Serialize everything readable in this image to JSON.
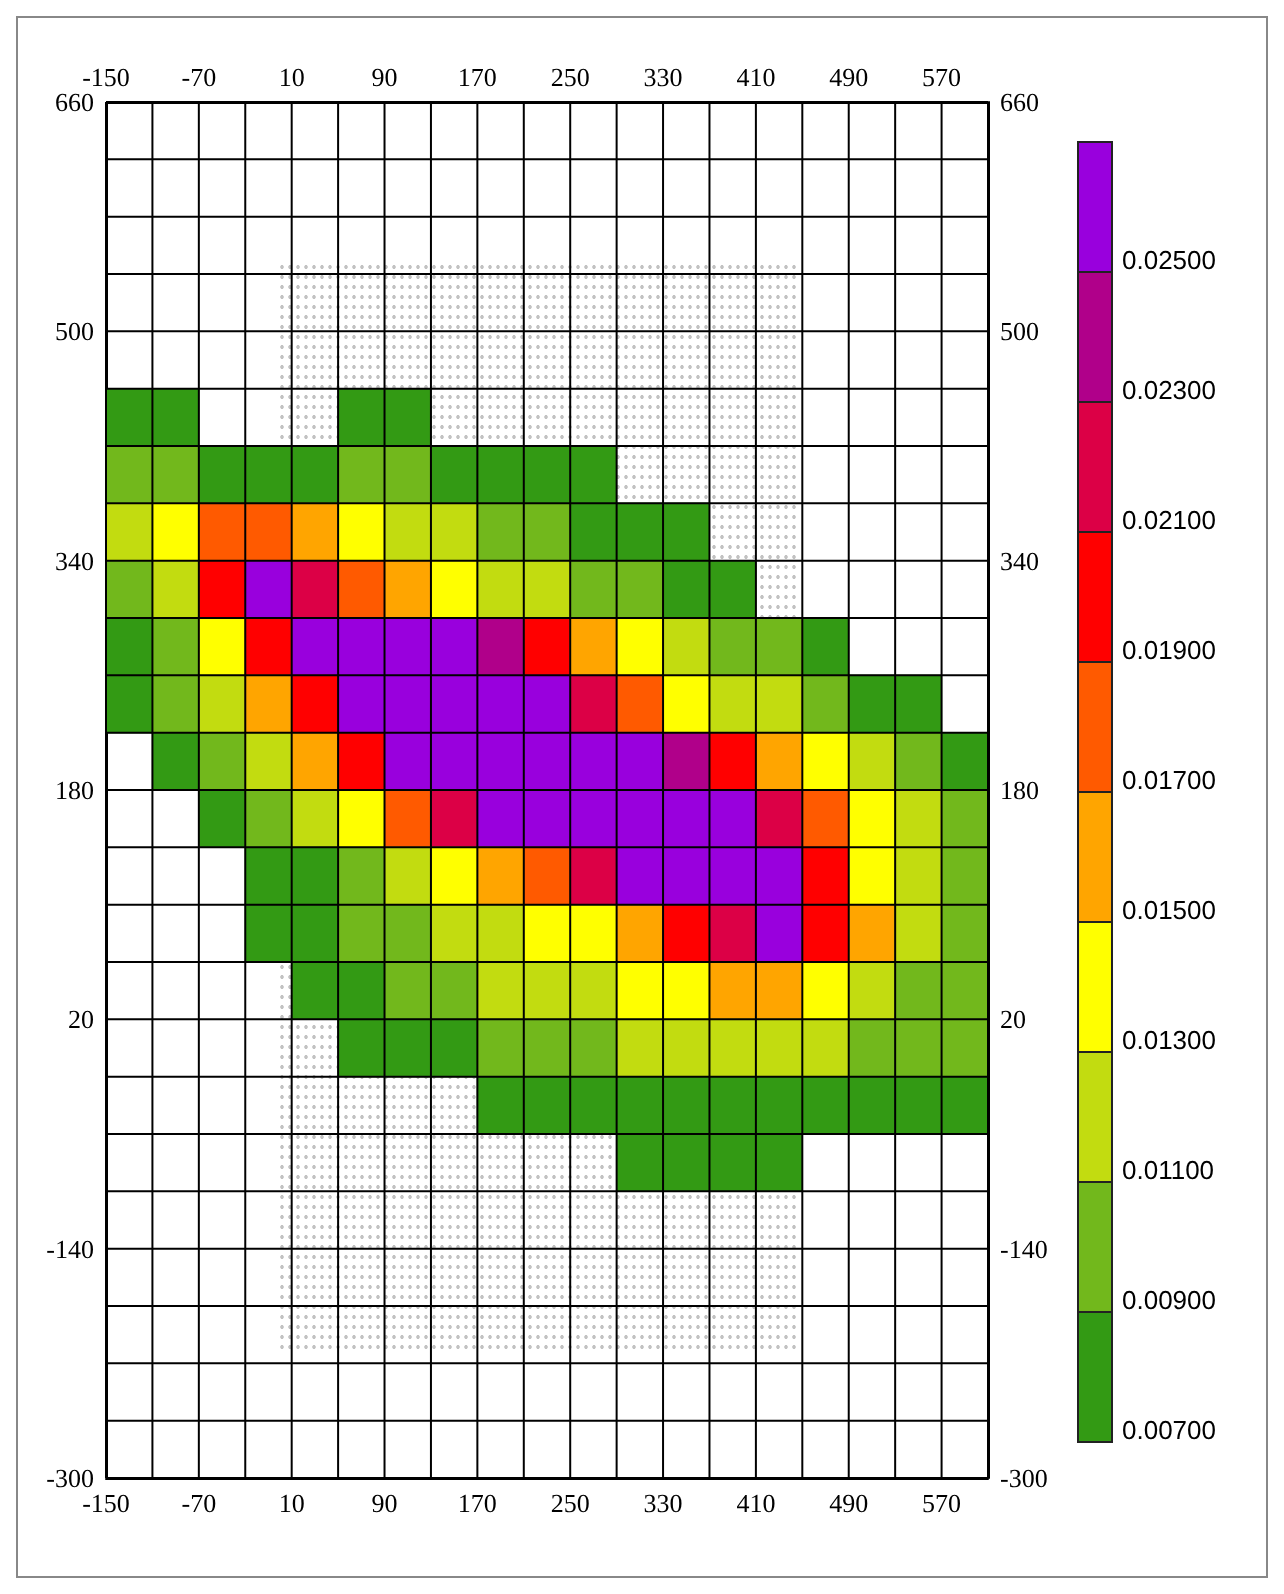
{
  "chart_data": {
    "type": "scatter",
    "marker": "square",
    "x": [
      -130,
      -90,
      70,
      110,
      -130,
      -90,
      -50,
      -10,
      30,
      70,
      110,
      150,
      190,
      230,
      270,
      -130,
      -90,
      -50,
      -10,
      30,
      70,
      110,
      150,
      190,
      230,
      270,
      310,
      350,
      -130,
      -90,
      -50,
      -10,
      30,
      70,
      110,
      150,
      190,
      230,
      270,
      310,
      350,
      390,
      -130,
      -90,
      -50,
      -10,
      30,
      70,
      110,
      150,
      190,
      230,
      270,
      310,
      350,
      390,
      430,
      470,
      -130,
      -90,
      -50,
      -10,
      30,
      70,
      110,
      150,
      190,
      230,
      270,
      310,
      350,
      390,
      430,
      470,
      510,
      550,
      -90,
      -50,
      -10,
      30,
      70,
      110,
      150,
      190,
      230,
      270,
      310,
      350,
      390,
      430,
      470,
      510,
      550,
      590,
      -50,
      -10,
      30,
      70,
      110,
      150,
      190,
      230,
      270,
      310,
      350,
      390,
      430,
      470,
      510,
      550,
      590,
      -10,
      30,
      70,
      110,
      150,
      190,
      230,
      270,
      310,
      350,
      390,
      430,
      470,
      510,
      550,
      590,
      -10,
      30,
      70,
      110,
      150,
      190,
      230,
      270,
      310,
      350,
      390,
      430,
      470,
      510,
      550,
      590,
      30,
      70,
      110,
      150,
      190,
      230,
      270,
      310,
      350,
      390,
      430,
      470,
      510,
      550,
      590,
      70,
      110,
      150,
      190,
      230,
      270,
      310,
      350,
      390,
      430,
      470,
      510,
      550,
      590,
      190,
      230,
      270,
      310,
      350,
      390,
      430,
      470,
      510,
      550,
      590,
      310,
      350,
      390,
      430
    ],
    "values": [
      440,
      440,
      440,
      440,
      400,
      400,
      400,
      400,
      400,
      400,
      400,
      400,
      400,
      400,
      400,
      360,
      360,
      360,
      360,
      360,
      360,
      360,
      360,
      360,
      360,
      360,
      360,
      360,
      320,
      320,
      320,
      320,
      320,
      320,
      320,
      320,
      320,
      320,
      320,
      320,
      320,
      320,
      280,
      280,
      280,
      280,
      280,
      280,
      280,
      280,
      280,
      280,
      280,
      280,
      280,
      280,
      280,
      280,
      240,
      240,
      240,
      240,
      240,
      240,
      240,
      240,
      240,
      240,
      240,
      240,
      240,
      240,
      240,
      240,
      240,
      240,
      200,
      200,
      200,
      200,
      200,
      200,
      200,
      200,
      200,
      200,
      200,
      200,
      200,
      200,
      200,
      200,
      200,
      200,
      160,
      160,
      160,
      160,
      160,
      160,
      160,
      160,
      160,
      160,
      160,
      160,
      160,
      160,
      160,
      160,
      160,
      120,
      120,
      120,
      120,
      120,
      120,
      120,
      120,
      120,
      120,
      120,
      120,
      120,
      120,
      120,
      120,
      80,
      80,
      80,
      80,
      80,
      80,
      80,
      80,
      80,
      80,
      80,
      80,
      80,
      80,
      80,
      80,
      40,
      40,
      40,
      40,
      40,
      40,
      40,
      40,
      40,
      40,
      40,
      40,
      40,
      40,
      40,
      0,
      0,
      0,
      0,
      0,
      0,
      0,
      0,
      0,
      0,
      0,
      0,
      0,
      0,
      -40,
      -40,
      -40,
      -40,
      -40,
      -40,
      -40,
      -40,
      -40,
      -40,
      -40,
      -80,
      -80,
      -80,
      -80
    ],
    "cvalues": [
      0.008,
      0.008,
      0.008,
      0.008,
      0.01,
      0.01,
      0.008,
      0.008,
      0.008,
      0.01,
      0.01,
      0.008,
      0.008,
      0.008,
      0.008,
      0.012,
      0.014,
      0.018,
      0.018,
      0.016,
      0.014,
      0.012,
      0.012,
      0.01,
      0.01,
      0.008,
      0.008,
      0.008,
      0.01,
      0.012,
      0.02,
      0.026,
      0.022,
      0.018,
      0.016,
      0.014,
      0.012,
      0.012,
      0.01,
      0.01,
      0.008,
      0.008,
      0.008,
      0.01,
      0.014,
      0.02,
      0.026,
      0.026,
      0.026,
      0.026,
      0.024,
      0.02,
      0.016,
      0.014,
      0.012,
      0.01,
      0.01,
      0.008,
      0.008,
      0.01,
      0.012,
      0.016,
      0.02,
      0.026,
      0.026,
      0.026,
      0.026,
      0.026,
      0.022,
      0.018,
      0.014,
      0.012,
      0.012,
      0.01,
      0.008,
      0.008,
      0.008,
      0.01,
      0.012,
      0.016,
      0.02,
      0.026,
      0.026,
      0.026,
      0.026,
      0.026,
      0.026,
      0.024,
      0.02,
      0.016,
      0.014,
      0.012,
      0.01,
      0.008,
      0.008,
      0.01,
      0.012,
      0.014,
      0.018,
      0.022,
      0.026,
      0.026,
      0.026,
      0.026,
      0.026,
      0.026,
      0.022,
      0.018,
      0.014,
      0.012,
      0.01,
      0.008,
      0.008,
      0.01,
      0.012,
      0.014,
      0.016,
      0.018,
      0.022,
      0.026,
      0.026,
      0.026,
      0.026,
      0.02,
      0.014,
      0.012,
      0.01,
      0.008,
      0.008,
      0.01,
      0.01,
      0.012,
      0.012,
      0.014,
      0.014,
      0.016,
      0.02,
      0.022,
      0.026,
      0.02,
      0.016,
      0.012,
      0.01,
      0.008,
      0.008,
      0.01,
      0.01,
      0.012,
      0.012,
      0.012,
      0.014,
      0.014,
      0.016,
      0.016,
      0.014,
      0.012,
      0.01,
      0.01,
      0.008,
      0.008,
      0.008,
      0.01,
      0.01,
      0.01,
      0.012,
      0.012,
      0.012,
      0.012,
      0.012,
      0.01,
      0.01,
      0.01,
      0.008,
      0.008,
      0.008,
      0.008,
      0.008,
      0.008,
      0.008,
      0.008,
      0.008,
      0.008,
      0.008,
      0.008,
      0.008,
      0.008,
      0.008
    ],
    "xlim": [
      -150,
      610
    ],
    "x2lim": [
      -150,
      610
    ],
    "xticks": [
      -150,
      {
        "value": -110,
        "label": null
      },
      -70,
      {
        "value": -30,
        "label": null
      },
      10,
      {
        "value": 50,
        "label": null
      },
      90,
      {
        "value": 130,
        "label": null
      },
      170,
      {
        "value": 210,
        "label": null
      },
      250,
      {
        "value": 290,
        "label": null
      },
      330,
      {
        "value": 370,
        "label": null
      },
      410,
      {
        "value": 450,
        "label": null
      },
      490,
      {
        "value": 530,
        "label": null
      },
      570,
      {
        "value": 610,
        "label": null
      }
    ],
    "x2ticks": [
      -150,
      -70,
      10,
      90,
      170,
      250,
      330,
      410,
      490,
      570
    ],
    "ylim": [
      -300,
      660
    ],
    "y2lim": [
      -300,
      660
    ],
    "yticks": [
      -300,
      {
        "value": -260,
        "label": null
      },
      {
        "value": -220,
        "label": null
      },
      {
        "value": -180,
        "label": null
      },
      -140,
      {
        "value": -100,
        "label": null
      },
      {
        "value": -60,
        "label": null
      },
      {
        "value": -20,
        "label": null
      },
      20,
      {
        "value": 60,
        "label": null
      },
      {
        "value": 100,
        "label": null
      },
      {
        "value": 140,
        "label": null
      },
      180,
      {
        "value": 220,
        "label": null
      },
      {
        "value": 260,
        "label": null
      },
      {
        "value": 300,
        "label": null
      },
      340,
      {
        "value": 380,
        "label": null
      },
      {
        "value": 420,
        "label": null
      },
      {
        "value": 460,
        "label": null
      },
      500,
      {
        "value": 540,
        "label": null
      },
      {
        "value": 580,
        "label": null
      },
      {
        "value": 620,
        "label": null
      },
      660
    ],
    "y2ticks": [
      -300,
      -140,
      20,
      180,
      340,
      500,
      660
    ],
    "clim": [
      0.007,
      0.027
    ],
    "cticks": [
      {
        "value": 0.007,
        "label": "0.00700"
      },
      {
        "value": 0.009,
        "label": "0.00900"
      },
      {
        "value": 0.011,
        "label": "0.01100"
      },
      {
        "value": 0.013,
        "label": "0.01300"
      },
      {
        "value": 0.015,
        "label": "0.01500"
      },
      {
        "value": 0.017,
        "label": "0.01700"
      },
      {
        "value": 0.019,
        "label": "0.01900"
      },
      {
        "value": 0.021,
        "label": "0.02100"
      },
      {
        "value": 0.023,
        "label": "0.02300"
      },
      {
        "value": 0.025,
        "label": "0.02500"
      }
    ],
    "grid": true
  }
}
